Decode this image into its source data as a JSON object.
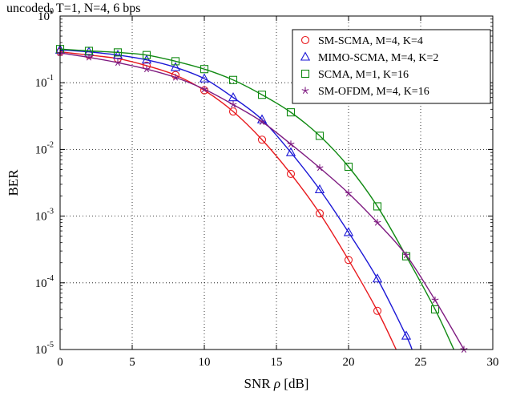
{
  "chart_data": {
    "type": "line",
    "title": "uncoded, T=1, N=4, 6 bps",
    "xlabel": "SNR ρ  [dB]",
    "ylabel": "BER",
    "xlim": [
      0,
      30
    ],
    "ylim": [
      1e-05,
      1
    ],
    "yscale": "log",
    "grid": "dotted",
    "legend_position": "top-right",
    "x_ticks": [
      0,
      5,
      10,
      15,
      20,
      25,
      30
    ],
    "y_ticks": [
      {
        "base": "10",
        "exp": "0",
        "value": 1
      },
      {
        "base": "10",
        "exp": "-1",
        "value": 0.1
      },
      {
        "base": "10",
        "exp": "-2",
        "value": 0.01
      },
      {
        "base": "10",
        "exp": "-3",
        "value": 0.001
      },
      {
        "base": "10",
        "exp": "-4",
        "value": 0.0001
      },
      {
        "base": "10",
        "exp": "-5",
        "value": 1e-05
      }
    ],
    "series": [
      {
        "name": "SM-SCMA, M=4, K=4",
        "color": "#e8191d",
        "marker": "circle",
        "x": [
          0,
          2,
          4,
          6,
          8,
          10,
          12,
          14,
          16,
          18,
          20,
          22
        ],
        "y": [
          0.29,
          0.26,
          0.23,
          0.18,
          0.13,
          0.077,
          0.037,
          0.014,
          0.0043,
          0.0011,
          0.00022,
          3.8e-05
        ],
        "curve_end": [
          23.3,
          1e-05
        ]
      },
      {
        "name": "MIMO-SCMA, M=4, K=2",
        "color": "#1b17d6",
        "marker": "triangle",
        "x": [
          0,
          2,
          4,
          6,
          8,
          10,
          12,
          14,
          16,
          18,
          20,
          22,
          24
        ],
        "y": [
          0.31,
          0.29,
          0.26,
          0.22,
          0.17,
          0.115,
          0.06,
          0.028,
          0.009,
          0.0025,
          0.00057,
          0.000115,
          1.6e-05
        ],
        "curve_end": [
          24.4,
          1e-05
        ]
      },
      {
        "name": "SCMA, M=1, K=16",
        "color": "#118a13",
        "marker": "square",
        "x": [
          0,
          2,
          4,
          6,
          8,
          10,
          12,
          14,
          16,
          18,
          20,
          22,
          24,
          26
        ],
        "y": [
          0.32,
          0.3,
          0.285,
          0.26,
          0.21,
          0.16,
          0.11,
          0.066,
          0.036,
          0.016,
          0.0055,
          0.0014,
          0.00025,
          4e-05
        ],
        "curve_end": [
          27.3,
          1e-05
        ]
      },
      {
        "name": "SM-OFDM, M=4, K=16",
        "color": "#7e1a80",
        "marker": "star",
        "x": [
          0,
          2,
          4,
          6,
          8,
          10,
          12,
          14,
          16,
          18,
          20,
          22,
          24,
          26,
          28
        ],
        "y": [
          0.28,
          0.24,
          0.2,
          0.16,
          0.12,
          0.08,
          0.047,
          0.026,
          0.012,
          0.0053,
          0.0022,
          0.0008,
          0.00026,
          5.5e-05,
          1e-05
        ]
      }
    ]
  }
}
